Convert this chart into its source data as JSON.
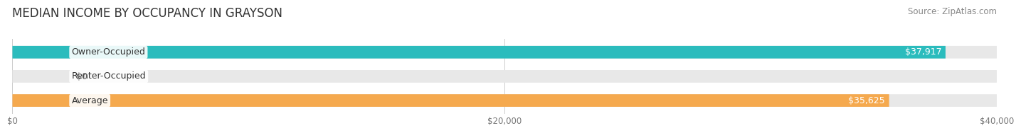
{
  "title": "MEDIAN INCOME BY OCCUPANCY IN GRAYSON",
  "source": "Source: ZipAtlas.com",
  "categories": [
    "Owner-Occupied",
    "Renter-Occupied",
    "Average"
  ],
  "values": [
    37917,
    0,
    35625
  ],
  "bar_colors": [
    "#2BBCBD",
    "#B9A0C8",
    "#F5A94E"
  ],
  "bar_bg_color": "#E8E8E8",
  "value_labels": [
    "$37,917",
    "$0",
    "$35,625"
  ],
  "xlim": [
    0,
    40000
  ],
  "xtick_labels": [
    "$0",
    "$20,000",
    "$40,000"
  ],
  "xtick_vals": [
    0,
    20000,
    40000
  ],
  "title_fontsize": 12,
  "source_fontsize": 8.5,
  "bar_label_fontsize": 9,
  "value_label_fontsize": 9,
  "background_color": "#FFFFFF",
  "bar_height": 0.52
}
